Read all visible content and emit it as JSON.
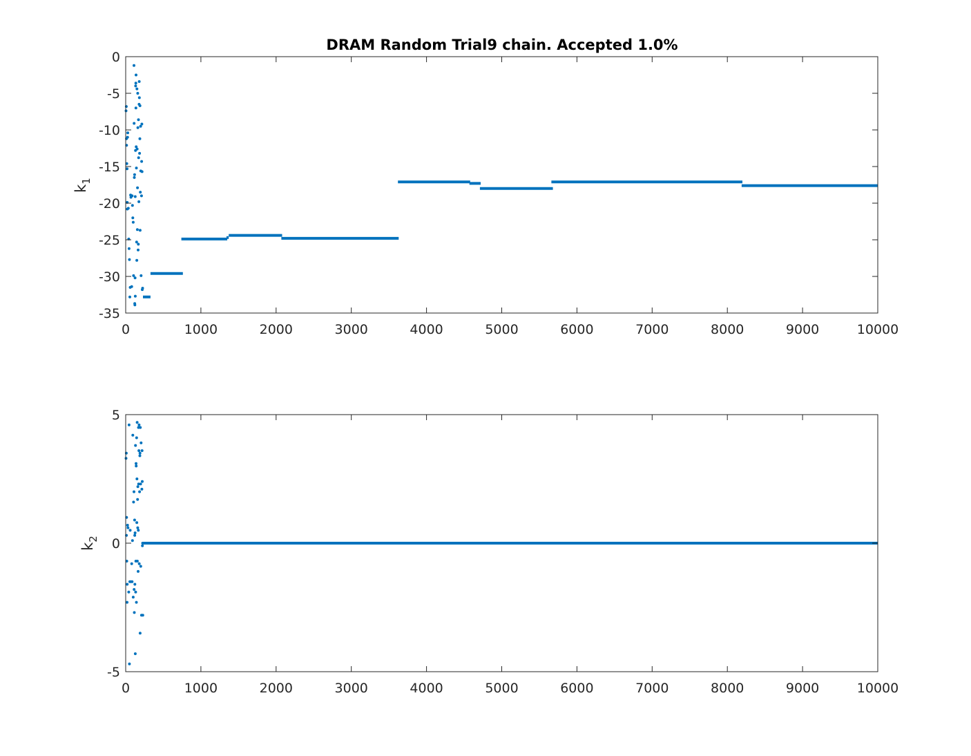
{
  "chart_data": [
    {
      "type": "scatter",
      "title": "DRAM Random Trial9 chain. Accepted 1.0%",
      "ylabel": "k",
      "ylabel_subscript": "1",
      "xlim": [
        0,
        10000
      ],
      "ylim": [
        -35,
        0
      ],
      "xticks": [
        0,
        1000,
        2000,
        3000,
        4000,
        5000,
        6000,
        7000,
        8000,
        9000,
        10000
      ],
      "yticks": [
        0,
        -5,
        -10,
        -15,
        -20,
        -25,
        -30,
        -35
      ],
      "color": "#0072bd",
      "burnin_points": [
        [
          5,
          -7.4
        ],
        [
          8,
          -6.8
        ],
        [
          10,
          -11.2
        ],
        [
          12,
          -12.1
        ],
        [
          15,
          -14.6
        ],
        [
          18,
          -15.3
        ],
        [
          20,
          -19.9
        ],
        [
          22,
          -20.8
        ],
        [
          25,
          -11.0
        ],
        [
          28,
          -10.4
        ],
        [
          35,
          -20.7
        ],
        [
          40,
          -24.9
        ],
        [
          45,
          -26.2
        ],
        [
          50,
          -27.7
        ],
        [
          55,
          -32.8
        ],
        [
          60,
          -31.5
        ],
        [
          65,
          -18.9
        ],
        [
          70,
          -19.2
        ],
        [
          80,
          -31.4
        ],
        [
          85,
          -19.0
        ],
        [
          90,
          -20.3
        ],
        [
          95,
          -22.0
        ],
        [
          100,
          -22.6
        ],
        [
          105,
          -29.9
        ],
        [
          110,
          -1.2
        ],
        [
          112,
          -9.1
        ],
        [
          115,
          -16.5
        ],
        [
          118,
          -16.1
        ],
        [
          120,
          -33.7
        ],
        [
          122,
          -33.9
        ],
        [
          125,
          -30.2
        ],
        [
          127,
          -19.1
        ],
        [
          128,
          -32.7
        ],
        [
          130,
          -12.8
        ],
        [
          132,
          -4.0
        ],
        [
          135,
          -3.6
        ],
        [
          136,
          -7.0
        ],
        [
          138,
          -2.5
        ],
        [
          140,
          -12.3
        ],
        [
          142,
          -15.2
        ],
        [
          145,
          -25.3
        ],
        [
          148,
          -27.8
        ],
        [
          150,
          -4.4
        ],
        [
          152,
          -12.6
        ],
        [
          155,
          -23.6
        ],
        [
          157,
          -17.9
        ],
        [
          160,
          -5.0
        ],
        [
          162,
          -9.7
        ],
        [
          165,
          -26.4
        ],
        [
          168,
          -25.6
        ],
        [
          170,
          -8.6
        ],
        [
          172,
          -13.8
        ],
        [
          175,
          -19.8
        ],
        [
          178,
          -6.5
        ],
        [
          180,
          -3.4
        ],
        [
          182,
          -5.6
        ],
        [
          185,
          -13.2
        ],
        [
          188,
          -11.2
        ],
        [
          190,
          -6.7
        ],
        [
          192,
          -23.7
        ],
        [
          195,
          -18.5
        ],
        [
          198,
          -9.5
        ],
        [
          200,
          -15.6
        ],
        [
          205,
          -29.9
        ],
        [
          210,
          -19.0
        ],
        [
          212,
          -14.3
        ],
        [
          215,
          -9.2
        ],
        [
          218,
          -15.7
        ],
        [
          220,
          -31.8
        ],
        [
          225,
          -31.6
        ]
      ],
      "plateaus": [
        {
          "x_start": 230,
          "x_end": 330,
          "y": -32.8
        },
        {
          "x_start": 330,
          "x_end": 760,
          "y": -29.6
        },
        {
          "x_start": 740,
          "x_end": 1350,
          "y": -24.9
        },
        {
          "x_start": 1340,
          "x_end": 1370,
          "y": -24.7
        },
        {
          "x_start": 1370,
          "x_end": 2080,
          "y": -24.4
        },
        {
          "x_start": 2070,
          "x_end": 3630,
          "y": -24.8
        },
        {
          "x_start": 3620,
          "x_end": 4580,
          "y": -17.1
        },
        {
          "x_start": 4570,
          "x_end": 4720,
          "y": -17.3
        },
        {
          "x_start": 4710,
          "x_end": 5680,
          "y": -18.0
        },
        {
          "x_start": 5660,
          "x_end": 8200,
          "y": -17.1
        },
        {
          "x_start": 8190,
          "x_end": 10000,
          "y": -17.6
        }
      ]
    },
    {
      "type": "scatter",
      "title": "",
      "ylabel": "k",
      "ylabel_subscript": "2",
      "xlim": [
        0,
        10000
      ],
      "ylim": [
        -5,
        5
      ],
      "xticks": [
        0,
        1000,
        2000,
        3000,
        4000,
        5000,
        6000,
        7000,
        8000,
        9000,
        10000
      ],
      "yticks": [
        5,
        0,
        -5
      ],
      "color": "#0072bd",
      "burnin_points": [
        [
          5,
          3.3
        ],
        [
          8,
          3.5
        ],
        [
          10,
          0.3
        ],
        [
          12,
          1.0
        ],
        [
          15,
          -0.7
        ],
        [
          18,
          -2.3
        ],
        [
          20,
          -1.6
        ],
        [
          25,
          0.7
        ],
        [
          30,
          0.6
        ],
        [
          40,
          -1.9
        ],
        [
          45,
          4.6
        ],
        [
          50,
          -4.7
        ],
        [
          55,
          -1.5
        ],
        [
          60,
          0.5
        ],
        [
          70,
          -1.5
        ],
        [
          80,
          -0.8
        ],
        [
          85,
          -1.5
        ],
        [
          90,
          0.1
        ],
        [
          95,
          4.2
        ],
        [
          100,
          -2.1
        ],
        [
          105,
          1.6
        ],
        [
          110,
          2.0
        ],
        [
          112,
          -1.8
        ],
        [
          115,
          -2.7
        ],
        [
          118,
          0.9
        ],
        [
          120,
          0.3
        ],
        [
          122,
          -1.6
        ],
        [
          125,
          0.4
        ],
        [
          128,
          -4.3
        ],
        [
          130,
          3.8
        ],
        [
          132,
          -1.9
        ],
        [
          135,
          -0.7
        ],
        [
          138,
          3.1
        ],
        [
          140,
          3.0
        ],
        [
          142,
          -2.3
        ],
        [
          145,
          4.1
        ],
        [
          148,
          0.8
        ],
        [
          150,
          2.5
        ],
        [
          152,
          4.7
        ],
        [
          155,
          -0.7
        ],
        [
          158,
          1.7
        ],
        [
          160,
          0.6
        ],
        [
          162,
          2.2
        ],
        [
          165,
          -1.1
        ],
        [
          168,
          0.5
        ],
        [
          170,
          4.5
        ],
        [
          172,
          2.3
        ],
        [
          175,
          3.6
        ],
        [
          178,
          4.6
        ],
        [
          180,
          -0.8
        ],
        [
          185,
          2.0
        ],
        [
          188,
          3.4
        ],
        [
          190,
          3.5
        ],
        [
          192,
          -3.5
        ],
        [
          195,
          4.5
        ],
        [
          198,
          2.3
        ],
        [
          200,
          -0.9
        ],
        [
          205,
          3.9
        ],
        [
          210,
          -2.8
        ],
        [
          215,
          2.1
        ],
        [
          218,
          3.6
        ],
        [
          220,
          2.4
        ],
        [
          222,
          -0.1
        ],
        [
          225,
          0.0
        ],
        [
          228,
          -2.8
        ]
      ],
      "plateaus": [
        {
          "x_start": 230,
          "x_end": 10000,
          "y": 0.0
        }
      ]
    }
  ]
}
